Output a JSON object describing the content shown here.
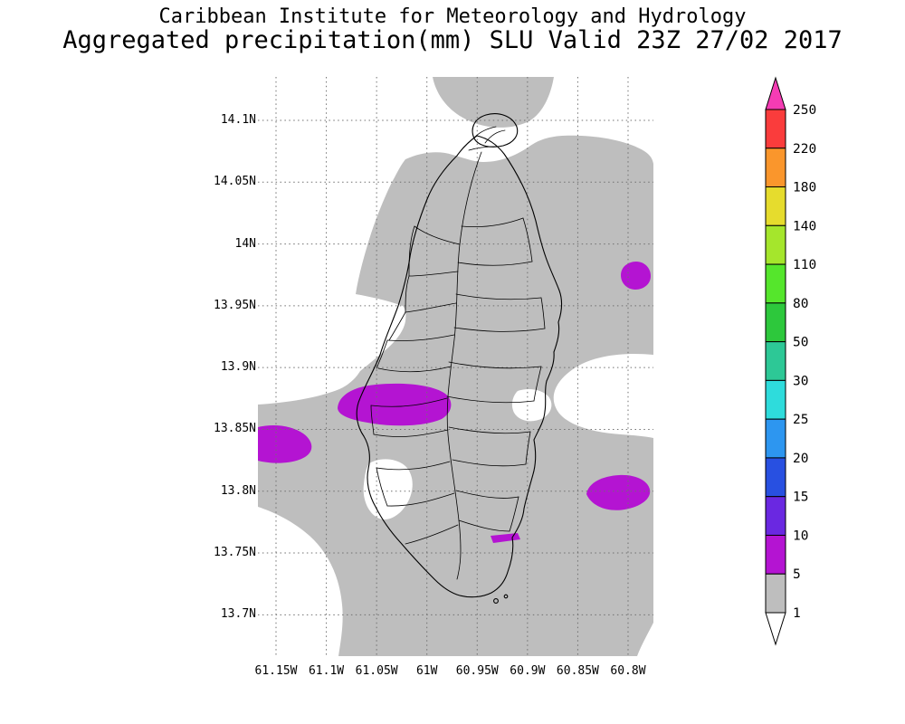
{
  "colors": {
    "background": "#FFFFFF",
    "text": "#000000",
    "grid": "#707070",
    "coastline": "#000000",
    "precip_lt1": "#FFFFFF",
    "precip_1_5": "#BEBEBE",
    "precip_5_10": "#B414D2"
  },
  "header": {
    "line1": "Caribbean Institute for Meteorology and Hydrology",
    "line2": "Aggregated precipitation(mm) SLU Valid 23Z 27/02 2017"
  },
  "chart_data": {
    "type": "heatmap",
    "organization": "Caribbean Institute for Meteorology and Hydrology",
    "title": "Aggregated precipitation(mm) SLU Valid 23Z 27/02 2017",
    "variable": "Aggregated precipitation",
    "units": "mm",
    "region_code": "SLU",
    "valid_time": "23Z 27/02 2017",
    "grid_style": "dotted",
    "y_axis": {
      "label_type": "latitude",
      "values": [
        14.1,
        14.05,
        14.0,
        13.95,
        13.9,
        13.85,
        13.8,
        13.75,
        13.7
      ],
      "labels": [
        "14.1N",
        "14.05N",
        "14N",
        "13.95N",
        "13.9N",
        "13.85N",
        "13.8N",
        "13.75N",
        "13.7N"
      ]
    },
    "x_axis": {
      "label_type": "longitude",
      "values": [
        61.15,
        61.1,
        61.05,
        61.0,
        60.95,
        60.9,
        60.85,
        60.8
      ],
      "labels": [
        "61.15W",
        "61.1W",
        "61.05W",
        "61W",
        "60.95W",
        "60.9W",
        "60.85W",
        "60.8W"
      ]
    },
    "colorbar": {
      "orientation": "vertical",
      "position": "right",
      "levels": [
        1,
        5,
        10,
        15,
        20,
        25,
        30,
        50,
        80,
        110,
        140,
        180,
        220,
        250
      ],
      "labels": [
        "1",
        "5",
        "10",
        "15",
        "20",
        "25",
        "30",
        "50",
        "80",
        "110",
        "140",
        "180",
        "220",
        "250"
      ],
      "colors_low_to_high": [
        "#FFFFFF",
        "#BEBEBE",
        "#B414D2",
        "#6A28E1",
        "#2850E1",
        "#2D96F0",
        "#2EDCDC",
        "#2DC896",
        "#2DC83C",
        "#55E62C",
        "#A5E62C",
        "#E6DC2D",
        "#FA962C",
        "#FA3C3C",
        "#F53CB4"
      ]
    },
    "shaded_regions": [
      {
        "value_range_mm": "1-5",
        "color": "#BEBEBE",
        "extent": "broad band covering most of the domain including nearly all of the island"
      },
      {
        "value_range_mm": "5-10",
        "color": "#B414D2",
        "cells": [
          {
            "center_lat": 13.87,
            "center_lon": 61.05,
            "note": "elongated cell over west-central island"
          },
          {
            "center_lat": 13.84,
            "center_lon": 61.14,
            "note": "cell at western edge of domain"
          },
          {
            "center_lat": 13.8,
            "center_lon": 60.82,
            "note": "cell east of the island"
          },
          {
            "center_lat": 13.975,
            "center_lon": 60.8,
            "note": "small cell at eastern edge"
          },
          {
            "center_lat": 13.763,
            "center_lon": 60.93,
            "note": "tiny sliver on southeast coast"
          }
        ]
      },
      {
        "value_range_mm": "<1",
        "color": "#FFFFFF",
        "extent": "domain corners, west coast pocket, southwest pocket, east coast pocket"
      }
    ]
  }
}
